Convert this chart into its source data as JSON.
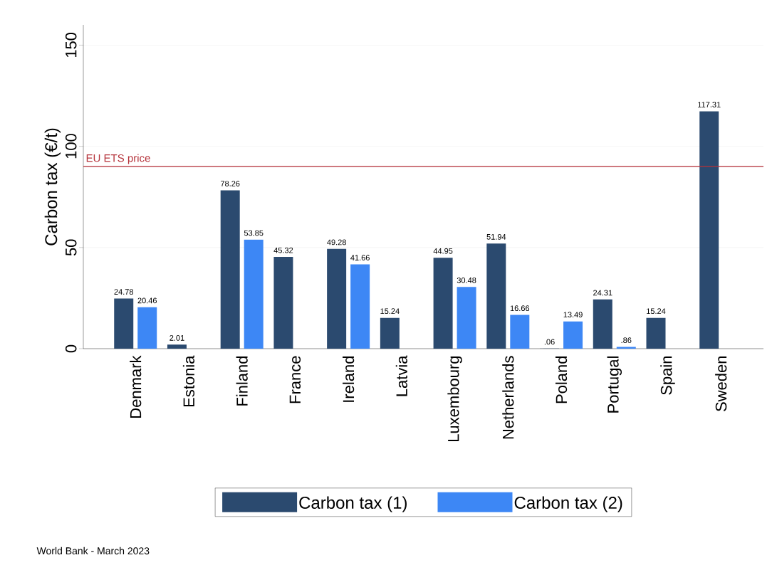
{
  "chart_data": {
    "type": "bar",
    "ylabel": "Carbon tax (€/t)",
    "categories": [
      "Denmark",
      "Estonia",
      "Finland",
      "France",
      "Ireland",
      "Latvia",
      "Luxembourg",
      "Netherlands",
      "Poland",
      "Portugal",
      "Spain",
      "Sweden"
    ],
    "series": [
      {
        "name": "Carbon tax (1)",
        "color": "#2b4a6f",
        "values": [
          24.78,
          2.01,
          78.26,
          45.32,
          49.28,
          15.24,
          44.95,
          51.94,
          0.06,
          24.31,
          15.24,
          117.31
        ],
        "value_labels": [
          "24.78",
          "2.01",
          "78.26",
          "45.32",
          "49.28",
          "15.24",
          "44.95",
          "51.94",
          ".06",
          "24.31",
          "15.24",
          "117.31"
        ]
      },
      {
        "name": "Carbon tax (2)",
        "color": "#3d87f5",
        "values": [
          20.46,
          null,
          53.85,
          null,
          41.66,
          null,
          30.48,
          16.66,
          13.49,
          0.86,
          null,
          null
        ],
        "value_labels": [
          "20.46",
          null,
          "53.85",
          null,
          "41.66",
          null,
          "30.48",
          "16.66",
          "13.49",
          ".86",
          null,
          null
        ]
      }
    ],
    "ylim": [
      0,
      160
    ],
    "yticks": [
      0,
      50,
      100,
      150
    ],
    "ref_lines": [
      {
        "axis": "y",
        "value": 90,
        "label": "EU ETS price",
        "color": "#b5333b"
      }
    ],
    "grid": "y",
    "legend": "bottom",
    "annotations": [
      "World Bank - March 2023"
    ]
  }
}
